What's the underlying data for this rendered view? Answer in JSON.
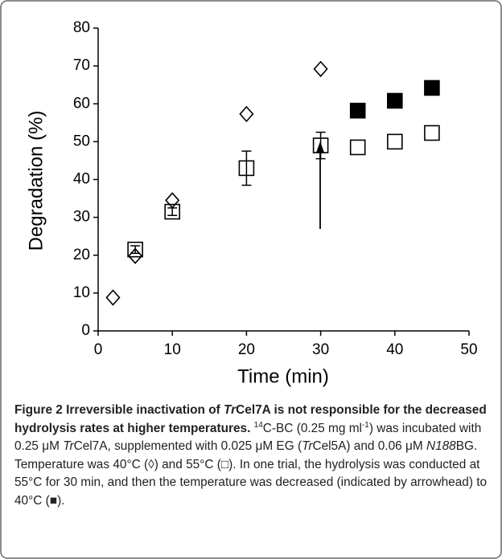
{
  "chart_data": {
    "type": "scatter",
    "x_label": "Time (min)",
    "y_label": "Degradation (%)",
    "xlim": [
      0,
      50
    ],
    "xticks": [
      0,
      10,
      20,
      30,
      40,
      50
    ],
    "ylim": [
      0,
      80
    ],
    "yticks": [
      0,
      10,
      20,
      30,
      40,
      50,
      60,
      70,
      80
    ],
    "grid": false,
    "series": [
      {
        "marker": "diamond",
        "filled": false,
        "color": "#000000",
        "x": [
          2,
          5,
          10,
          20,
          30
        ],
        "values": [
          8.8,
          19.8,
          34.5,
          57.3,
          69.2
        ]
      },
      {
        "marker": "square",
        "filled": false,
        "color": "#000000",
        "x": [
          5,
          10,
          20,
          30,
          35,
          40,
          45
        ],
        "values": [
          21.5,
          31.5,
          43,
          49,
          48.5,
          50,
          52.3
        ],
        "errors": [
          1,
          1,
          4.5,
          3.5,
          null,
          null,
          null
        ]
      },
      {
        "marker": "square",
        "filled": true,
        "color": "#000000",
        "x": [
          35,
          40,
          45
        ],
        "values": [
          58.2,
          60.8,
          64.2
        ]
      }
    ]
  },
  "caption": [
    "Figure 2 Irreversible inactivation of ",
    "Tr",
    "Cel7A is not responsible for the decreased hydrolysis rates at higher temperatures.",
    " ",
    "14",
    "C-BC (0.25 mg ml",
    "-1",
    ") was incubated with 0.25 μM ",
    "Tr",
    "Cel7A, supplemented with 0.025 μM EG (",
    "Tr",
    "Cel5A) and 0.06 μM ",
    "N188",
    "BG. Temperature was 40°C (◊) and 55°C (□). In one trial, the hydrolysis was conducted at 55°C for 30 min, and then the temperature was decreased (indicated by arrowhead) to 40°C (■)."
  ]
}
